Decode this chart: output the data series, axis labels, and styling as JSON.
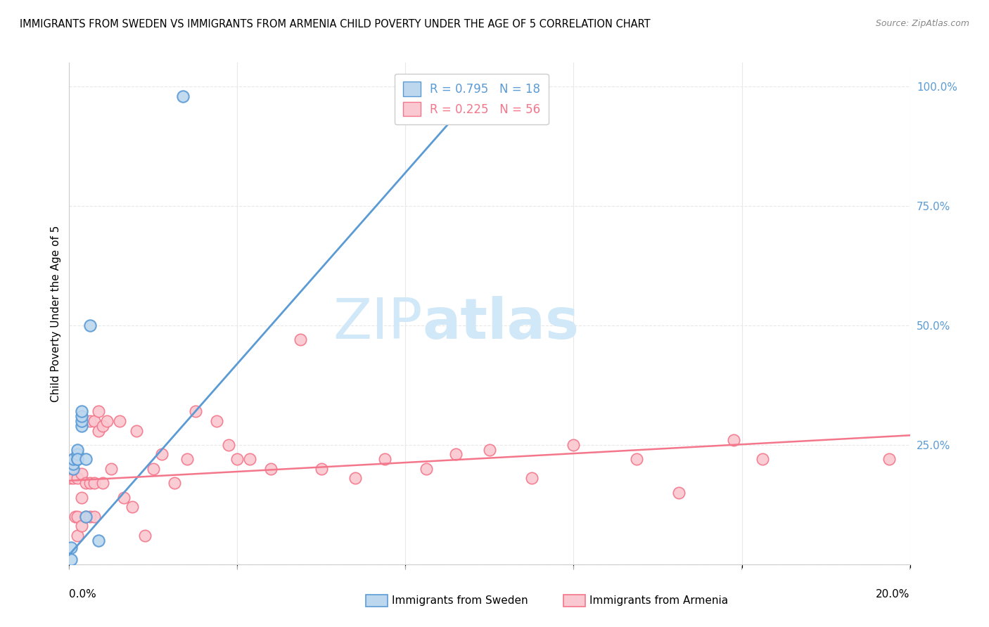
{
  "title": "IMMIGRANTS FROM SWEDEN VS IMMIGRANTS FROM ARMENIA CHILD POVERTY UNDER THE AGE OF 5 CORRELATION CHART",
  "source": "Source: ZipAtlas.com",
  "ylabel": "Child Poverty Under the Age of 5",
  "xlim": [
    0.0,
    0.2
  ],
  "ylim": [
    0.0,
    1.05
  ],
  "sweden_color": "#5b9bd5",
  "sweden_fill": "#bdd7ee",
  "armenia_color": "#f4768b",
  "armenia_fill": "#fac8d0",
  "sweden_R": 0.795,
  "sweden_N": 18,
  "armenia_R": 0.225,
  "armenia_N": 56,
  "sweden_x": [
    0.0005,
    0.0005,
    0.001,
    0.001,
    0.001,
    0.002,
    0.002,
    0.002,
    0.002,
    0.003,
    0.003,
    0.003,
    0.003,
    0.004,
    0.004,
    0.005,
    0.007,
    0.027
  ],
  "sweden_y": [
    0.035,
    0.01,
    0.2,
    0.21,
    0.22,
    0.22,
    0.23,
    0.24,
    0.22,
    0.29,
    0.3,
    0.31,
    0.32,
    0.22,
    0.1,
    0.5,
    0.05,
    0.98
  ],
  "armenia_x": [
    0.0003,
    0.0005,
    0.0008,
    0.001,
    0.001,
    0.001,
    0.0015,
    0.002,
    0.002,
    0.002,
    0.003,
    0.003,
    0.003,
    0.004,
    0.004,
    0.005,
    0.005,
    0.005,
    0.006,
    0.006,
    0.006,
    0.007,
    0.007,
    0.008,
    0.008,
    0.009,
    0.01,
    0.012,
    0.013,
    0.015,
    0.016,
    0.018,
    0.02,
    0.022,
    0.025,
    0.028,
    0.03,
    0.035,
    0.038,
    0.04,
    0.043,
    0.048,
    0.055,
    0.06,
    0.068,
    0.075,
    0.085,
    0.092,
    0.1,
    0.11,
    0.12,
    0.135,
    0.145,
    0.158,
    0.165,
    0.195
  ],
  "armenia_y": [
    0.18,
    0.2,
    0.19,
    0.18,
    0.2,
    0.22,
    0.1,
    0.06,
    0.1,
    0.18,
    0.08,
    0.14,
    0.19,
    0.1,
    0.17,
    0.1,
    0.17,
    0.3,
    0.1,
    0.17,
    0.3,
    0.28,
    0.32,
    0.17,
    0.29,
    0.3,
    0.2,
    0.3,
    0.14,
    0.12,
    0.28,
    0.06,
    0.2,
    0.23,
    0.17,
    0.22,
    0.32,
    0.3,
    0.25,
    0.22,
    0.22,
    0.2,
    0.47,
    0.2,
    0.18,
    0.22,
    0.2,
    0.23,
    0.24,
    0.18,
    0.25,
    0.22,
    0.15,
    0.26,
    0.22,
    0.22
  ],
  "sweden_line_x": [
    0.0,
    0.1
  ],
  "sweden_line_y": [
    0.02,
    1.02
  ],
  "armenia_line_x": [
    0.0,
    0.2
  ],
  "armenia_line_y": [
    0.175,
    0.27
  ],
  "watermark_zip": "ZIP",
  "watermark_atlas": "atlas",
  "watermark_color": "#d0e8f8",
  "grid_color": "#e8e8e8",
  "background_color": "#ffffff",
  "right_yticks": [
    0.25,
    0.5,
    0.75,
    1.0
  ],
  "right_yticklabels": [
    "25.0%",
    "50.0%",
    "75.0%",
    "100.0%"
  ]
}
